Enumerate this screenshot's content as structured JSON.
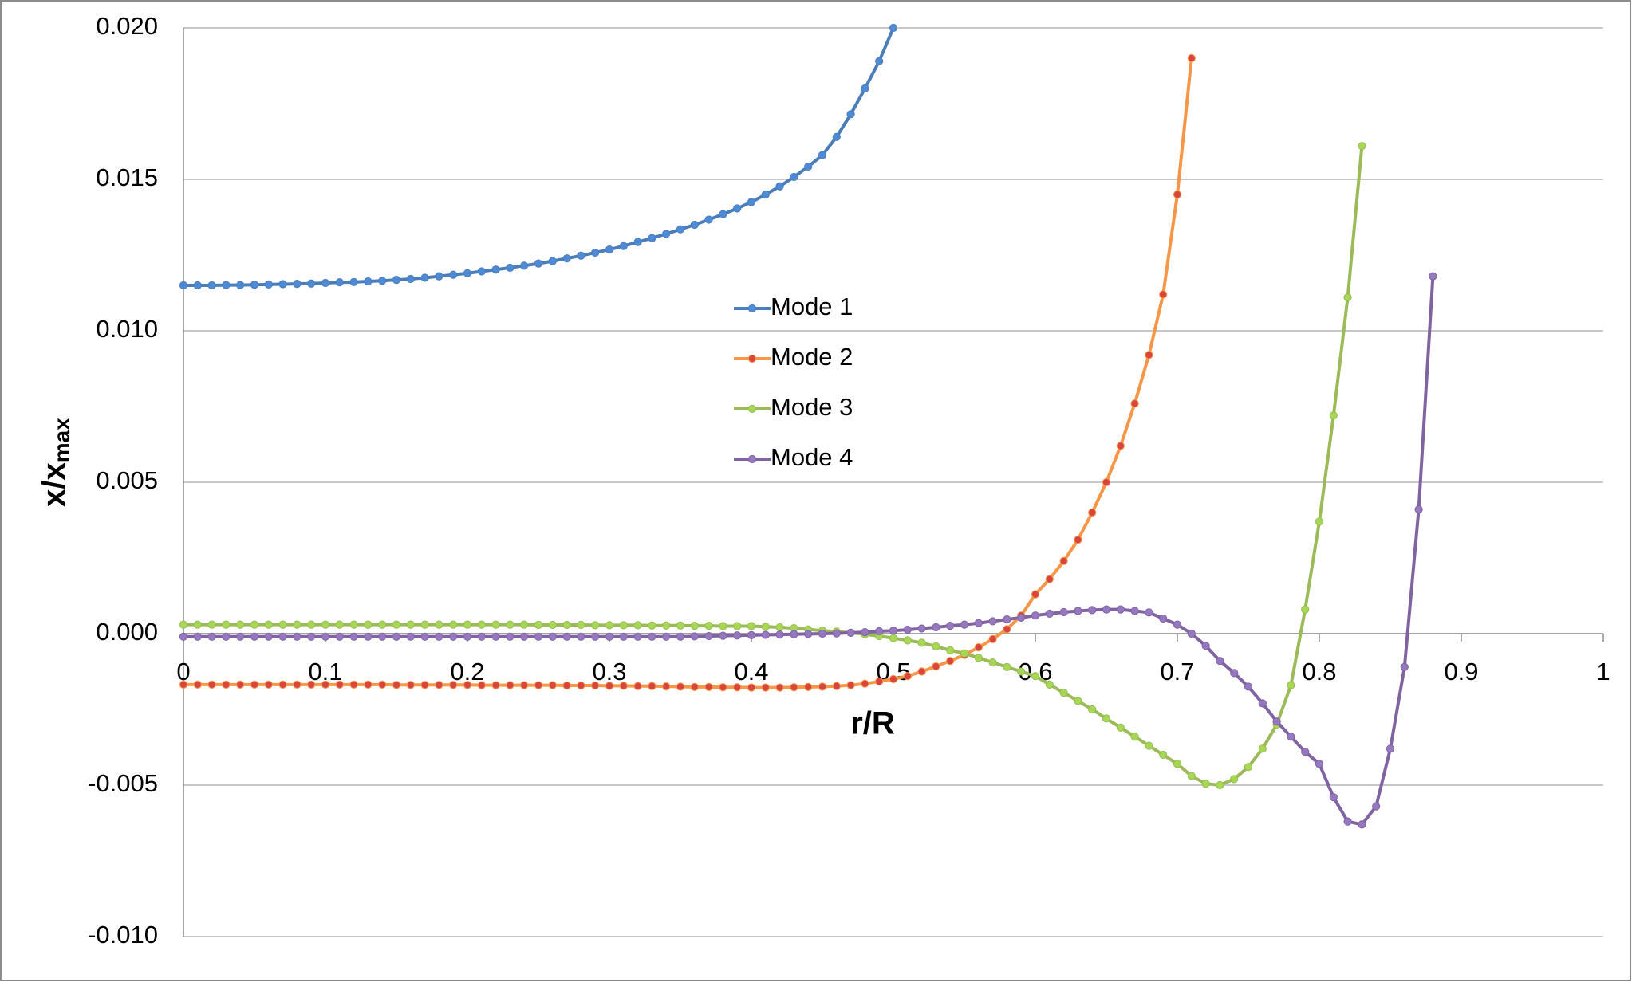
{
  "chart_data": {
    "type": "line",
    "x_label": "r/R",
    "y_label": {
      "text": "x/x",
      "subscript": "max"
    },
    "x": [
      0,
      0.01,
      0.02,
      0.03,
      0.04,
      0.05,
      0.06,
      0.07,
      0.08,
      0.09,
      0.1,
      0.11,
      0.12,
      0.13,
      0.14,
      0.15,
      0.16,
      0.17,
      0.18,
      0.19,
      0.2,
      0.21,
      0.22,
      0.23,
      0.24,
      0.25,
      0.26,
      0.27,
      0.28,
      0.29,
      0.3,
      0.31,
      0.32,
      0.33,
      0.34,
      0.35,
      0.36,
      0.37,
      0.38,
      0.39,
      0.4,
      0.41,
      0.42,
      0.43,
      0.44,
      0.45,
      0.46,
      0.47,
      0.48,
      0.49,
      0.5,
      0.51,
      0.52,
      0.53,
      0.54,
      0.55,
      0.56,
      0.57,
      0.58,
      0.59,
      0.6,
      0.61,
      0.62,
      0.63,
      0.64,
      0.65,
      0.66,
      0.67,
      0.68,
      0.69,
      0.7,
      0.71,
      0.72,
      0.73,
      0.74,
      0.75,
      0.76,
      0.77,
      0.78,
      0.79,
      0.8,
      0.81,
      0.82,
      0.83,
      0.84,
      0.85,
      0.86,
      0.87,
      0.88
    ],
    "series": [
      {
        "name": "Mode 1",
        "color": "#4a7ebb",
        "marker_color": "#4f8ad6",
        "values": [
          0.0115,
          0.0115,
          0.0115,
          0.01151,
          0.01151,
          0.01152,
          0.01153,
          0.01154,
          0.01155,
          0.01156,
          0.01158,
          0.0116,
          0.01161,
          0.01163,
          0.01165,
          0.01168,
          0.01171,
          0.01175,
          0.0118,
          0.01185,
          0.0119,
          0.01196,
          0.01202,
          0.01208,
          0.01215,
          0.01222,
          0.0123,
          0.01239,
          0.01248,
          0.01258,
          0.01268,
          0.0128,
          0.01293,
          0.01306,
          0.0132,
          0.01335,
          0.0135,
          0.01367,
          0.01385,
          0.01404,
          0.01425,
          0.0145,
          0.01477,
          0.01508,
          0.01542,
          0.0158,
          0.0164,
          0.01715,
          0.018,
          0.0189,
          0.02,
          null,
          null,
          null,
          null,
          null,
          null,
          null,
          null,
          null,
          null,
          null,
          null,
          null,
          null,
          null,
          null,
          null,
          null,
          null,
          null,
          null,
          null,
          null,
          null,
          null,
          null,
          null,
          null,
          null,
          null,
          null,
          null,
          null,
          null,
          null,
          null,
          null,
          null
        ]
      },
      {
        "name": "Mode 2",
        "color": "#f79646",
        "marker_color": "#d9453c",
        "values": [
          -0.00168,
          -0.00168,
          -0.00168,
          -0.00168,
          -0.00168,
          -0.00168,
          -0.00168,
          -0.00168,
          -0.00168,
          -0.00168,
          -0.00168,
          -0.00168,
          -0.00168,
          -0.00168,
          -0.00168,
          -0.00169,
          -0.00169,
          -0.00169,
          -0.00169,
          -0.00169,
          -0.00169,
          -0.0017,
          -0.0017,
          -0.0017,
          -0.0017,
          -0.0017,
          -0.0017,
          -0.00171,
          -0.00171,
          -0.00171,
          -0.00172,
          -0.00172,
          -0.00173,
          -0.00173,
          -0.00174,
          -0.00175,
          -0.00176,
          -0.00176,
          -0.00177,
          -0.00177,
          -0.00178,
          -0.00178,
          -0.00178,
          -0.00177,
          -0.00176,
          -0.00175,
          -0.00173,
          -0.0017,
          -0.00165,
          -0.00158,
          -0.0015,
          -0.0014,
          -0.00125,
          -0.00108,
          -0.0009,
          -0.0007,
          -0.00045,
          -0.00018,
          0.00015,
          0.0006,
          0.0013,
          0.0018,
          0.0024,
          0.0031,
          0.004,
          0.005,
          0.0062,
          0.0076,
          0.0092,
          0.0112,
          0.0145,
          0.019,
          null,
          null,
          null,
          null,
          null,
          null,
          null,
          null,
          null,
          null,
          null,
          null,
          null,
          null,
          null,
          null,
          null
        ]
      },
      {
        "name": "Mode 3",
        "color": "#9bbb59",
        "marker_color": "#a6d854",
        "values": [
          0.0003,
          0.0003,
          0.0003,
          0.0003,
          0.0003,
          0.0003,
          0.0003,
          0.0003,
          0.0003,
          0.0003,
          0.0003,
          0.0003,
          0.0003,
          0.0003,
          0.0003,
          0.0003,
          0.0003,
          0.0003,
          0.0003,
          0.0003,
          0.0003,
          0.0003,
          0.0003,
          0.0003,
          0.0003,
          0.00029,
          0.00029,
          0.00029,
          0.00029,
          0.00028,
          0.00028,
          0.00028,
          0.00028,
          0.00027,
          0.00027,
          0.00027,
          0.00026,
          0.00026,
          0.00025,
          0.00025,
          0.00025,
          0.00023,
          0.00021,
          0.00018,
          0.00014,
          0.0001,
          7e-05,
          3e-05,
          -2e-05,
          -8e-05,
          -0.00015,
          -0.00022,
          -0.0003,
          -0.00042,
          -0.00055,
          -0.00065,
          -0.0008,
          -0.00095,
          -0.0011,
          -0.00125,
          -0.0014,
          -0.00168,
          -0.00195,
          -0.00222,
          -0.0025,
          -0.0028,
          -0.0031,
          -0.0034,
          -0.0037,
          -0.004,
          -0.0043,
          -0.0047,
          -0.00495,
          -0.005,
          -0.0048,
          -0.0044,
          -0.0038,
          -0.003,
          -0.0017,
          0.0008,
          0.0037,
          0.0072,
          0.0111,
          0.0161,
          null,
          null,
          null,
          null,
          null
        ]
      },
      {
        "name": "Mode 4",
        "color": "#8064a2",
        "marker_color": "#9678c0",
        "values": [
          -0.0001,
          -0.0001,
          -0.0001,
          -0.0001,
          -0.0001,
          -0.0001,
          -0.0001,
          -0.0001,
          -0.0001,
          -0.0001,
          -0.0001,
          -0.0001,
          -0.0001,
          -0.0001,
          -0.0001,
          -0.0001,
          -0.0001,
          -0.0001,
          -0.0001,
          -0.0001,
          -0.0001,
          -0.0001,
          -0.0001,
          -0.0001,
          -0.0001,
          -0.0001,
          -0.0001,
          -0.0001,
          -0.0001,
          -0.0001,
          -0.0001,
          -0.0001,
          -0.0001,
          -0.0001,
          -0.0001,
          -0.0001,
          -9e-05,
          -8e-05,
          -7e-05,
          -6e-05,
          -5e-05,
          -4e-05,
          -3e-05,
          -2e-05,
          -1e-05,
          0,
          1e-05,
          3e-05,
          5e-05,
          8e-05,
          0.0001,
          0.00013,
          0.00017,
          0.00021,
          0.00026,
          0.0003,
          0.00035,
          0.00041,
          0.00047,
          0.00053,
          0.0006,
          0.00066,
          0.00071,
          0.00075,
          0.00078,
          0.0008,
          0.0008,
          0.00075,
          0.0007,
          0.0005,
          0.0003,
          0,
          -0.0004,
          -0.0009,
          -0.0013,
          -0.00175,
          -0.0023,
          -0.0029,
          -0.0034,
          -0.0039,
          -0.0043,
          -0.0054,
          -0.0062,
          -0.0063,
          -0.0057,
          -0.0038,
          -0.0011,
          0.0041,
          0.0118
        ]
      }
    ],
    "xlim": [
      0,
      1
    ],
    "xticks": [
      0,
      0.1,
      0.2,
      0.3,
      0.4,
      0.5,
      0.6,
      0.7,
      0.8,
      0.9,
      1
    ],
    "ylim": [
      -0.01,
      0.02
    ],
    "yticks": [
      {
        "value": -0.01,
        "label": "-0.010"
      },
      {
        "value": -0.005,
        "label": "-0.005"
      },
      {
        "value": 0,
        "label": "0.000"
      },
      {
        "value": 0.005,
        "label": "0.005"
      },
      {
        "value": 0.01,
        "label": "0.010"
      },
      {
        "value": 0.015,
        "label": "0.015"
      },
      {
        "value": 0.02,
        "label": "0.020"
      }
    ],
    "grid": true,
    "legend_position": "center"
  }
}
